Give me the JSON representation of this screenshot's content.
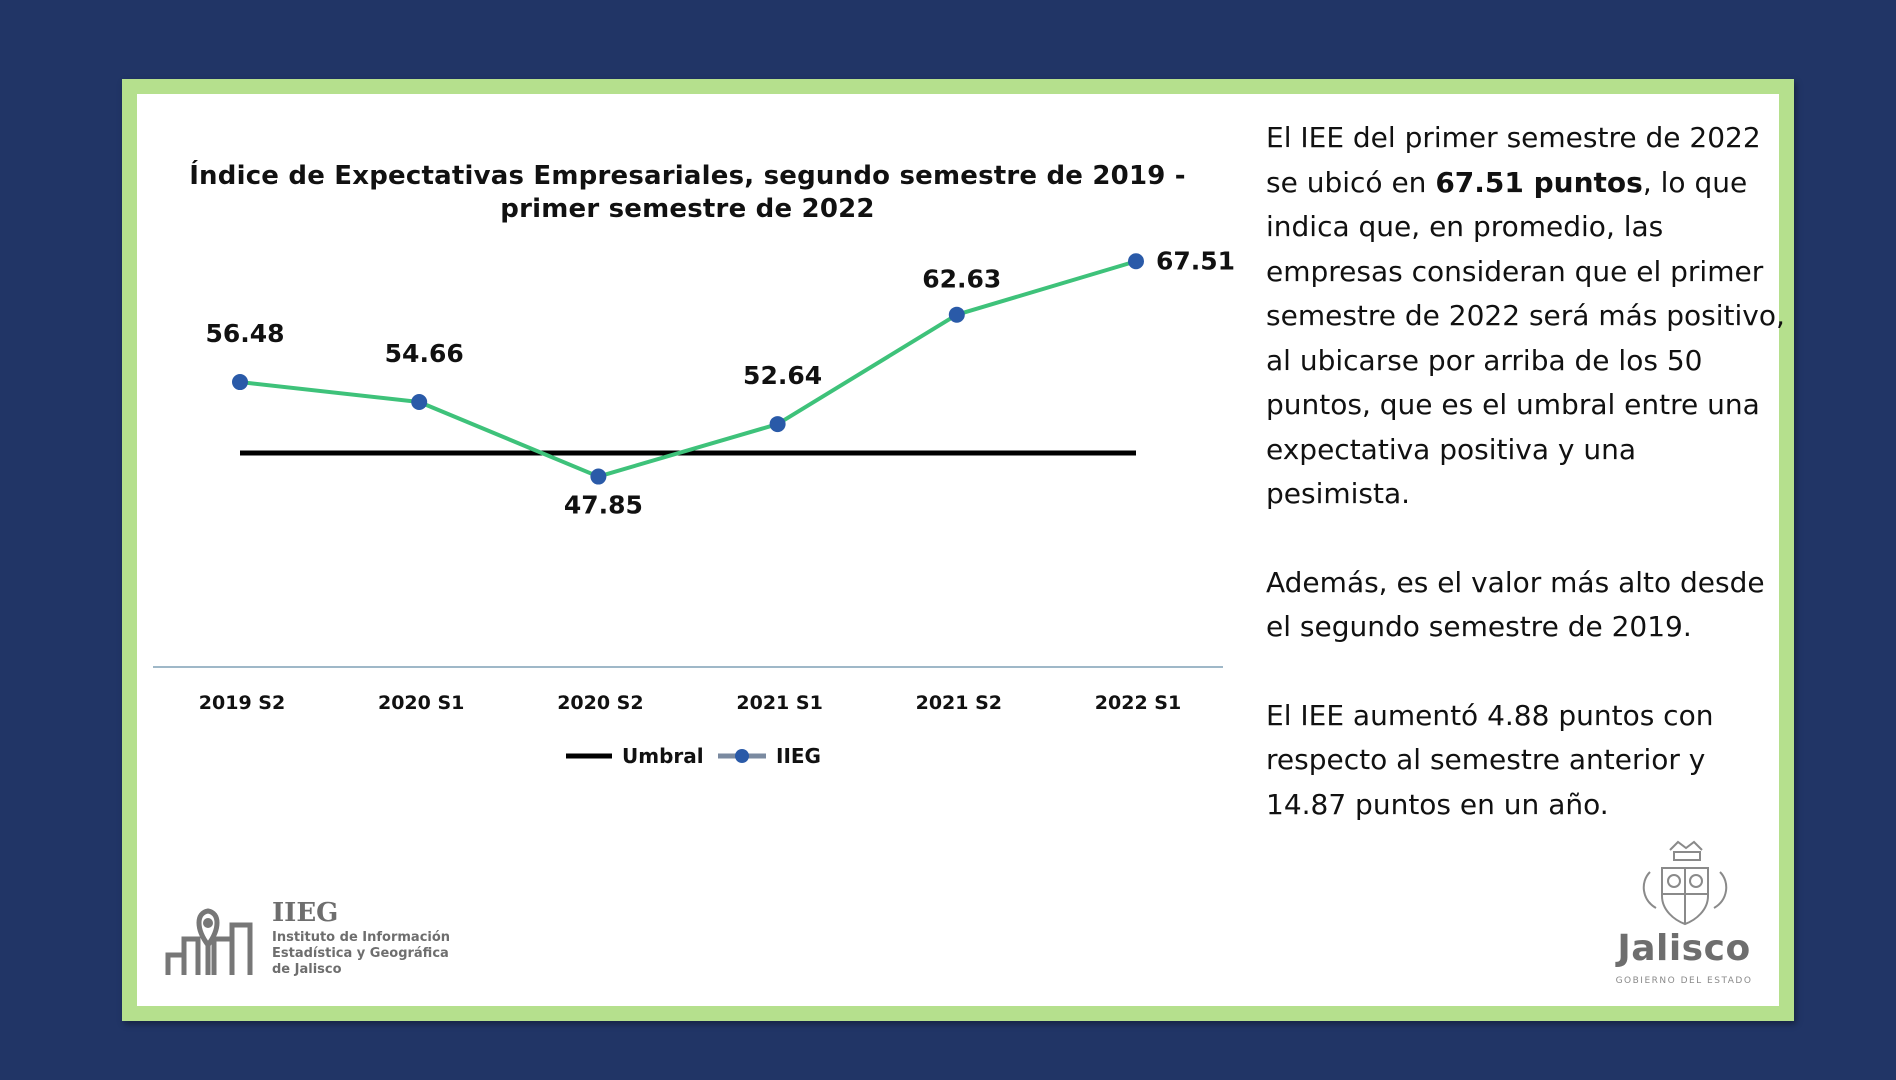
{
  "chart_data": {
    "type": "line",
    "title": "Índice de Expectativas Empresariales, segundo semestre de 2019 - primer semestre de 2022",
    "categories": [
      "2019 S2",
      "2020 S1",
      "2020 S2",
      "2021 S1",
      "2021 S2",
      "2022 S1"
    ],
    "series": [
      {
        "name": "Umbral",
        "values": [
          50,
          50,
          50,
          50,
          50,
          50
        ],
        "color": "#000000"
      },
      {
        "name": "IIEG",
        "values": [
          56.48,
          54.66,
          47.85,
          52.64,
          62.63,
          67.51
        ],
        "color": "#3ec27a",
        "marker_color": "#2a5aa8"
      }
    ],
    "data_labels": [
      "56.48",
      "54.66",
      "47.85",
      "52.64",
      "62.63",
      "67.51"
    ],
    "legend_position": "bottom-center",
    "grid": false
  },
  "text": {
    "p1_before": "El IEE del primer semestre de 2022 se ubicó en ",
    "p1_bold": "67.51 puntos",
    "p1_after": ", lo que indica que, en promedio, las empresas consideran que el primer semestre de 2022 será más positivo, al ubicarse por arriba de los 50 puntos, que es el umbral entre una expectativa positiva y una pesimista.",
    "p2": "Además, es el valor más alto desde el segundo semestre de 2019.",
    "p3": "El IEE aumentó 4.88 puntos con respecto al semestre anterior y 14.87 puntos en un año."
  },
  "logos": {
    "iieg_title": "IIEG",
    "iieg_line1": "Instituto de Información",
    "iieg_line2": "Estadística y Geográfica",
    "iieg_line3": "de Jalisco",
    "jalisco_name": "Jalisco",
    "jalisco_sub": "GOBIERNO DEL ESTADO"
  },
  "colors": {
    "background": "#213566",
    "frame": "#b5e08d",
    "line": "#3ec27a",
    "marker": "#2a5aa8",
    "axis": "#9fb8c8"
  }
}
